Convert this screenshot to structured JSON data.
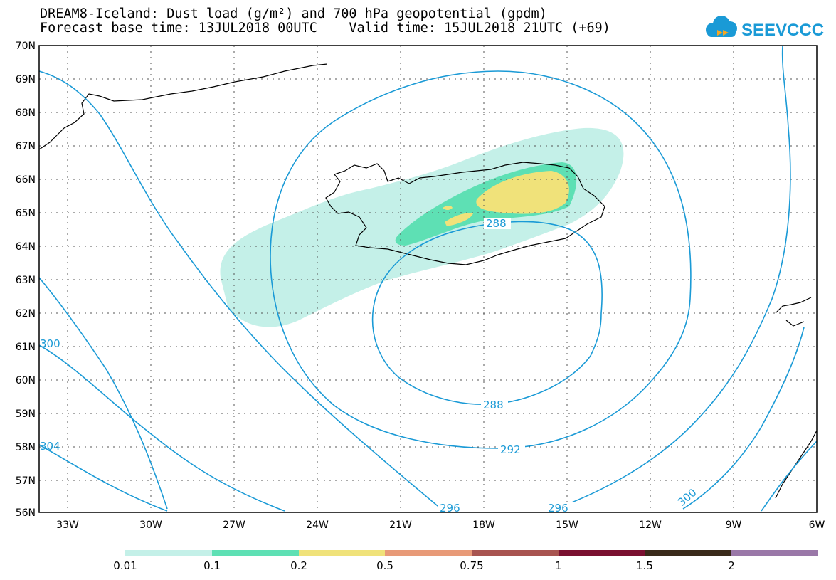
{
  "title": {
    "line1": "DREAM8-Iceland: Dust load (g/m²) and 700 hPa geopotential (gpdm)",
    "line2": "Forecast base time: 13JUL2018 00UTC    Valid time: 15JUL2018 21UTC (+69)"
  },
  "logo": {
    "text": "SEEVCCC",
    "icon": "cloud-icon",
    "color": "#1a9ad6"
  },
  "map": {
    "lat_labels": [
      "70N",
      "69N",
      "68N",
      "67N",
      "66N",
      "65N",
      "64N",
      "63N",
      "62N",
      "61N",
      "60N",
      "59N",
      "58N",
      "57N",
      "56N"
    ],
    "lon_labels": [
      "33W",
      "30W",
      "27W",
      "24W",
      "21W",
      "18W",
      "15W",
      "12W",
      "9W",
      "6W"
    ],
    "contour_labels": [
      "288",
      "288",
      "292",
      "296",
      "296",
      "300",
      "300",
      "304"
    ],
    "contour_color": "#1a9ad6"
  },
  "colorbar": {
    "labels": [
      "0.01",
      "0.1",
      "0.2",
      "0.5",
      "0.75",
      "1",
      "1.5",
      "2"
    ],
    "colors": [
      "#c4f0e8",
      "#5ee0b4",
      "#f0e27a",
      "#e89a78",
      "#a85450",
      "#7a1030",
      "#3a2a1a",
      "#9a78a8"
    ]
  }
}
